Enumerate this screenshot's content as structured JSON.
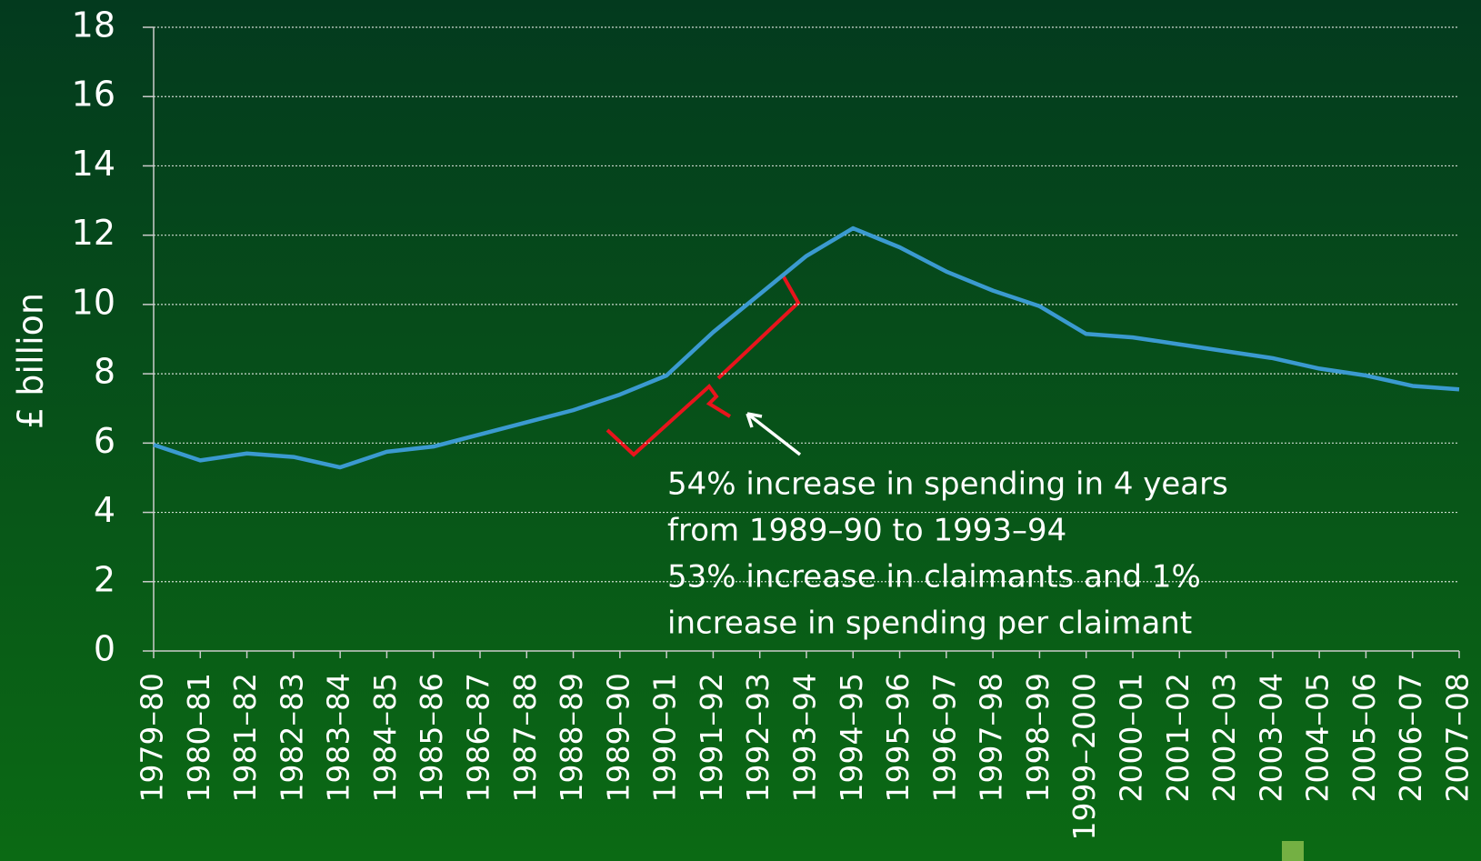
{
  "chart_data": {
    "type": "line",
    "y_label": "£ billion",
    "categories": [
      "1979–80",
      "1980–81",
      "1981–82",
      "1982–83",
      "1983–84",
      "1984–85",
      "1985–86",
      "1986–87",
      "1987–88",
      "1988–89",
      "1989–90",
      "1990–91",
      "1991–92",
      "1992–93",
      "1993–94",
      "1994–95",
      "1995–96",
      "1996–97",
      "1997–98",
      "1998–99",
      "1999–2000",
      "2000–01",
      "2001–02",
      "2002–03",
      "2003–04",
      "2004–05",
      "2005–06",
      "2006–07",
      "2007–08"
    ],
    "values": [
      5.95,
      5.5,
      5.7,
      5.6,
      5.3,
      5.75,
      5.9,
      6.25,
      6.6,
      6.95,
      7.4,
      7.95,
      9.2,
      10.3,
      11.4,
      12.2,
      11.65,
      10.95,
      10.4,
      9.95,
      9.15,
      9.05,
      8.85,
      8.65,
      8.45,
      8.15,
      7.95,
      7.65,
      7.55
    ],
    "color": "#3b9ad0",
    "ylim": [
      0,
      18
    ],
    "yticks": [
      0,
      2,
      4,
      6,
      8,
      10,
      12,
      14,
      16,
      18
    ],
    "grid": true,
    "annotation": [
      "54% increase in spending in 4 years",
      "from 1989–90 to 1993–94",
      "53% increase in claimants and 1%",
      "increase in spending per claimant"
    ]
  }
}
